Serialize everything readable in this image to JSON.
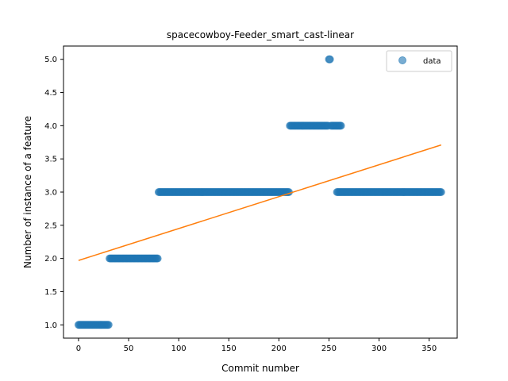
{
  "chart_data": {
    "type": "scatter",
    "title": "spacecowboy-Feeder_smart_cast-linear",
    "xlabel": "Commit number",
    "ylabel": "Number of instance of a feature",
    "xlim": [
      -15,
      378
    ],
    "ylim": [
      0.8,
      5.2
    ],
    "xticks": [
      0,
      50,
      100,
      150,
      200,
      250,
      300,
      350
    ],
    "yticks": [
      1.0,
      1.5,
      2.0,
      2.5,
      3.0,
      3.5,
      4.0,
      4.5,
      5.0
    ],
    "grid": false,
    "legend": {
      "placement": "top-right",
      "entries": [
        "data"
      ]
    },
    "series": [
      {
        "name": "data",
        "kind": "scatter",
        "color": "#1f77b4",
        "segments": [
          {
            "x_from": 0,
            "x_to": 30,
            "y": 1
          },
          {
            "x_from": 31,
            "x_to": 79,
            "y": 2
          },
          {
            "x_from": 80,
            "x_to": 210,
            "y": 3
          },
          {
            "x_from": 211,
            "x_to": 249,
            "y": 4
          },
          {
            "x_from": 250,
            "x_to": 251,
            "y": 5
          },
          {
            "x_from": 252,
            "x_to": 262,
            "y": 4
          },
          {
            "x_from": 258,
            "x_to": 362,
            "y": 3
          }
        ]
      },
      {
        "name": "",
        "kind": "line",
        "color": "#ff7f0e",
        "x": [
          0,
          362
        ],
        "y": [
          1.97,
          3.71
        ]
      }
    ]
  }
}
